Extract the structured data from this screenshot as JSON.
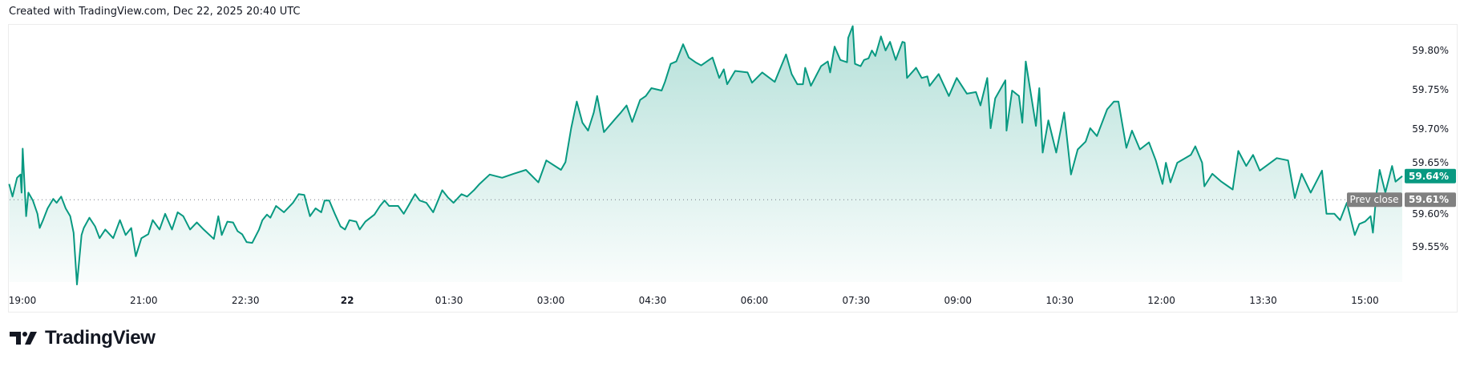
{
  "header": {
    "text": "Created with TradingView.com, Dec 22, 2025 20:40 UTC"
  },
  "logo": {
    "text": "TradingView"
  },
  "colors": {
    "line": "#089981",
    "prev_close_badge": "#808080",
    "last_badge": "#089981",
    "grid_dots": "#787b86"
  },
  "badges": {
    "last_value": "59.64%",
    "prev_close_label": "Prev close",
    "prev_close_value": "59.61%"
  },
  "chart_data": {
    "type": "area",
    "title": "",
    "xlabel": "",
    "ylabel": "",
    "ylim": [
      59.48,
      59.84
    ],
    "y_unit": "%",
    "grid": false,
    "legend": "none",
    "prev_close": 59.61,
    "last": 59.64,
    "y_ticks": [
      "59.80%",
      "59.75%",
      "59.70%",
      "59.65%",
      "59.60%",
      "59.55%"
    ],
    "y_tick_values": [
      59.8,
      59.75,
      59.7,
      59.65,
      59.6,
      59.55
    ],
    "x_ticks": [
      {
        "label": "19:00",
        "time": "19:00",
        "bold": false
      },
      {
        "label": "21:00",
        "time": "21:00",
        "bold": false
      },
      {
        "label": "22:30",
        "time": "22:30",
        "bold": false
      },
      {
        "label": "22",
        "time": "00:00",
        "bold": true
      },
      {
        "label": "01:30",
        "time": "01:30",
        "bold": false
      },
      {
        "label": "03:00",
        "time": "03:00",
        "bold": false
      },
      {
        "label": "04:30",
        "time": "04:30",
        "bold": false
      },
      {
        "label": "06:00",
        "time": "06:00",
        "bold": false
      },
      {
        "label": "07:30",
        "time": "07:30",
        "bold": false
      },
      {
        "label": "09:00",
        "time": "09:00",
        "bold": false
      },
      {
        "label": "10:30",
        "time": "10:30",
        "bold": false
      },
      {
        "label": "12:00",
        "time": "12:00",
        "bold": false
      },
      {
        "label": "13:30",
        "time": "13:30",
        "bold": false
      },
      {
        "label": "15:00",
        "time": "15:00",
        "bold": false
      }
    ],
    "series": [
      {
        "x": [
          "19:01",
          "19:04",
          "19:08",
          "19:11",
          "19:12",
          "19:13",
          "19:16",
          "19:18",
          "19:22",
          "19:26",
          "19:28",
          "19:31",
          "19:35",
          "19:40",
          "19:43",
          "19:47",
          "19:51",
          "19:55",
          "19:58",
          "20:01",
          "20:05",
          "20:07",
          "20:12",
          "20:17",
          "20:21",
          "20:26",
          "20:33",
          "20:39",
          "20:44",
          "20:49",
          "20:53",
          "20:58",
          "21:04",
          "21:08",
          "21:14",
          "21:19",
          "21:25",
          "21:30",
          "21:35",
          "21:41",
          "21:47",
          "21:53",
          "22:02",
          "22:06",
          "22:09",
          "22:14",
          "22:19",
          "22:23",
          "22:27",
          "22:31",
          "22:36",
          "22:42",
          "22:45",
          "22:49",
          "22:52",
          "22:57",
          "23:04",
          "23:12",
          "23:17",
          "23:22",
          "23:27",
          "23:32",
          "23:37",
          "23:40",
          "23:44",
          "23:49",
          "23:54",
          "23:58",
          "00:02",
          "00:08",
          "00:11",
          "00:16",
          "00:24",
          "00:29",
          "00:33",
          "00:37",
          "00:45",
          "00:50",
          "00:54",
          "01:00",
          "01:04",
          "01:10",
          "01:16",
          "01:24",
          "01:29",
          "01:34",
          "01:41",
          "01:46",
          "01:52",
          "01:57",
          "02:06",
          "02:17",
          "02:27",
          "02:38",
          "02:49",
          "02:56",
          "03:09",
          "03:13",
          "03:18",
          "03:23",
          "03:28",
          "03:33",
          "03:38",
          "03:41",
          "03:47",
          "03:57",
          "04:02",
          "04:07",
          "04:12",
          "04:19",
          "04:24",
          "04:29",
          "04:38",
          "04:41",
          "04:46",
          "04:51",
          "04:57",
          "05:02",
          "05:08",
          "05:13",
          "05:18",
          "05:23",
          "05:29",
          "05:33",
          "05:36",
          "05:43",
          "05:54",
          "05:58",
          "06:07",
          "06:18",
          "06:28",
          "06:33",
          "06:38",
          "06:43",
          "06:45",
          "06:50",
          "06:59",
          "07:05",
          "07:07",
          "07:11",
          "07:16",
          "07:22",
          "07:23",
          "07:27",
          "07:29",
          "07:34",
          "07:37",
          "07:41",
          "07:44",
          "07:47",
          "07:52",
          "07:56",
          "08:00",
          "08:05",
          "08:11",
          "08:13",
          "08:15",
          "08:23",
          "08:28",
          "08:33",
          "08:35",
          "08:43",
          "08:52",
          "08:59",
          "09:08",
          "09:16",
          "09:20",
          "09:26",
          "09:29",
          "09:33",
          "09:42",
          "09:43",
          "09:48",
          "09:54",
          "09:57",
          "10:00",
          "10:09",
          "10:12",
          "10:15",
          "10:20",
          "10:27",
          "10:34",
          "10:40",
          "10:46",
          "10:53",
          "10:57",
          "11:03",
          "11:12",
          "11:18",
          "11:22",
          "11:26",
          "11:29",
          "11:34",
          "11:41",
          "11:49",
          "11:55",
          "12:01",
          "12:04",
          "12:08",
          "12:14",
          "12:26",
          "12:30",
          "12:36",
          "12:38",
          "12:45",
          "12:53",
          "13:03",
          "13:08",
          "13:15",
          "13:21",
          "13:27",
          "13:42",
          "13:52",
          "13:58",
          "14:04",
          "14:12",
          "14:22",
          "14:26",
          "14:33",
          "14:38",
          "14:44",
          "14:51",
          "14:55",
          "15:00",
          "15:05",
          "15:07",
          "15:10",
          "15:13",
          "15:18",
          "15:24",
          "15:27",
          "15:33"
        ],
        "values": [
          59.63,
          59.614,
          59.638,
          59.642,
          59.619,
          59.675,
          59.589,
          59.619,
          59.609,
          59.592,
          59.574,
          59.584,
          59.599,
          59.611,
          59.606,
          59.614,
          59.599,
          59.589,
          59.568,
          59.502,
          59.565,
          59.574,
          59.587,
          59.576,
          59.561,
          59.572,
          59.561,
          59.584,
          59.565,
          59.574,
          59.538,
          59.561,
          59.566,
          59.584,
          59.572,
          59.592,
          59.572,
          59.594,
          59.589,
          59.572,
          59.581,
          59.572,
          59.56,
          59.589,
          59.565,
          59.582,
          59.581,
          59.57,
          59.566,
          59.556,
          59.555,
          59.572,
          59.584,
          59.591,
          59.587,
          59.602,
          59.594,
          59.606,
          59.617,
          59.616,
          59.589,
          59.599,
          59.594,
          59.609,
          59.609,
          59.592,
          59.576,
          59.572,
          59.584,
          59.582,
          59.572,
          59.582,
          59.591,
          59.602,
          59.609,
          59.602,
          59.602,
          59.592,
          59.602,
          59.617,
          59.609,
          59.606,
          59.594,
          59.622,
          59.613,
          59.606,
          59.617,
          59.614,
          59.622,
          59.63,
          59.642,
          59.638,
          59.643,
          59.648,
          59.632,
          59.66,
          59.648,
          59.658,
          59.701,
          59.735,
          59.708,
          59.698,
          59.721,
          59.742,
          59.696,
          59.713,
          59.721,
          59.73,
          59.709,
          59.737,
          59.742,
          59.752,
          59.749,
          59.76,
          59.783,
          59.786,
          59.808,
          59.791,
          59.785,
          59.781,
          59.786,
          59.791,
          59.765,
          59.776,
          59.757,
          59.774,
          59.772,
          59.759,
          59.772,
          59.76,
          59.795,
          59.77,
          59.757,
          59.757,
          59.778,
          59.755,
          59.78,
          59.786,
          59.772,
          59.805,
          59.788,
          59.785,
          59.816,
          59.831,
          59.783,
          59.78,
          59.788,
          59.79,
          59.8,
          59.793,
          59.818,
          59.8,
          59.811,
          59.788,
          59.811,
          59.81,
          59.765,
          59.778,
          59.765,
          59.767,
          59.755,
          59.77,
          59.742,
          59.765,
          59.745,
          59.747,
          59.73,
          59.765,
          59.701,
          59.739,
          59.762,
          59.698,
          59.749,
          59.742,
          59.708,
          59.786,
          59.704,
          59.752,
          59.67,
          59.711,
          59.67,
          59.721,
          59.642,
          59.674,
          59.684,
          59.701,
          59.691,
          59.725,
          59.735,
          59.735,
          59.701,
          59.676,
          59.698,
          59.674,
          59.683,
          59.66,
          59.63,
          59.657,
          59.632,
          59.657,
          59.667,
          59.678,
          59.657,
          59.627,
          59.643,
          59.633,
          59.623,
          59.672,
          59.653,
          59.667,
          59.647,
          59.663,
          59.66,
          59.612,
          59.643,
          59.619,
          59.647,
          59.592,
          59.592,
          59.584,
          59.606,
          59.565,
          59.579,
          59.582,
          59.589,
          59.568,
          59.616,
          59.648,
          59.619,
          59.653,
          59.633,
          59.64
        ]
      }
    ]
  }
}
